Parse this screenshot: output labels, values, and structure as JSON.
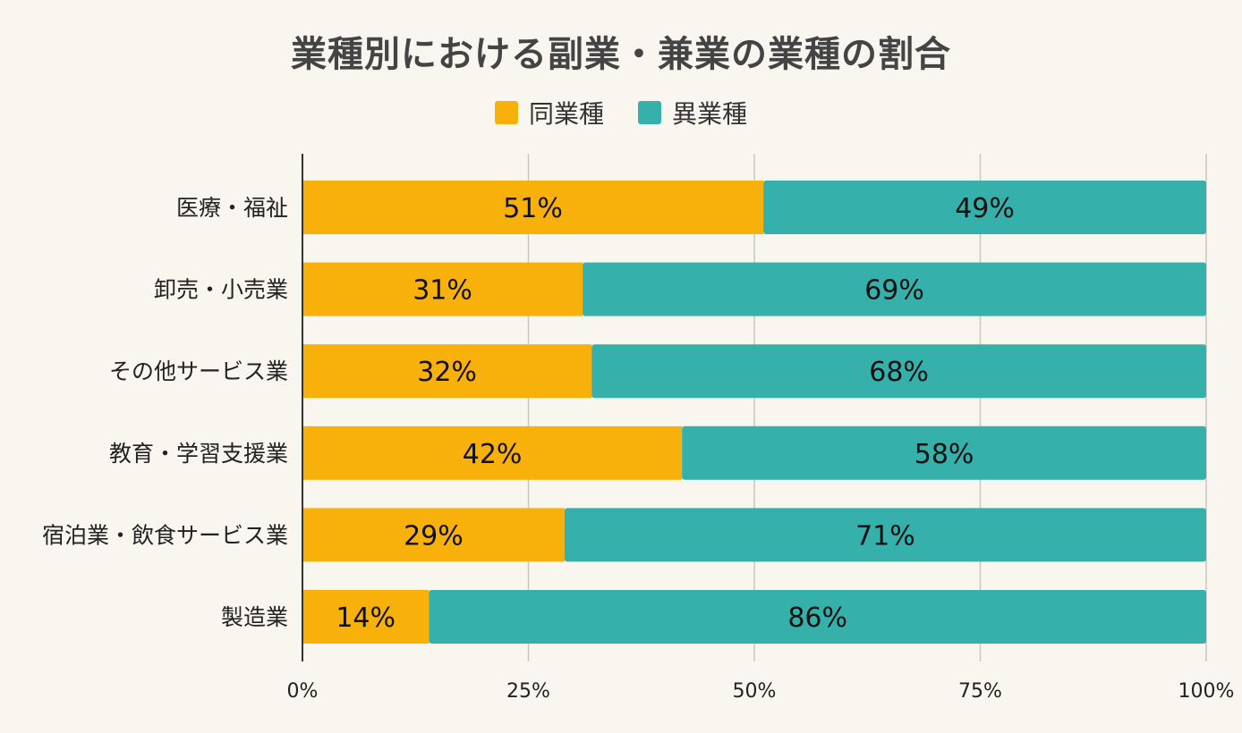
{
  "chart_data": {
    "type": "bar",
    "orientation": "horizontal",
    "stacked": true,
    "title": "業種別における副業・兼業の業種の割合",
    "categories": [
      "医療・福祉",
      "卸売・小売業",
      "その他サービス業",
      "教育・学習支援業",
      "宿泊業・飲食サービス業",
      "製造業"
    ],
    "series": [
      {
        "name": "同業種",
        "color": "#f8b00a",
        "values": [
          51,
          31,
          32,
          42,
          29,
          14
        ]
      },
      {
        "name": "異業種",
        "color": "#36b0aa",
        "values": [
          49,
          69,
          68,
          58,
          71,
          86
        ]
      }
    ],
    "x_ticks": [
      "0%",
      "25%",
      "50%",
      "75%",
      "100%"
    ],
    "xlim": [
      0,
      100
    ],
    "grid": true,
    "legend_position": "top-center"
  }
}
